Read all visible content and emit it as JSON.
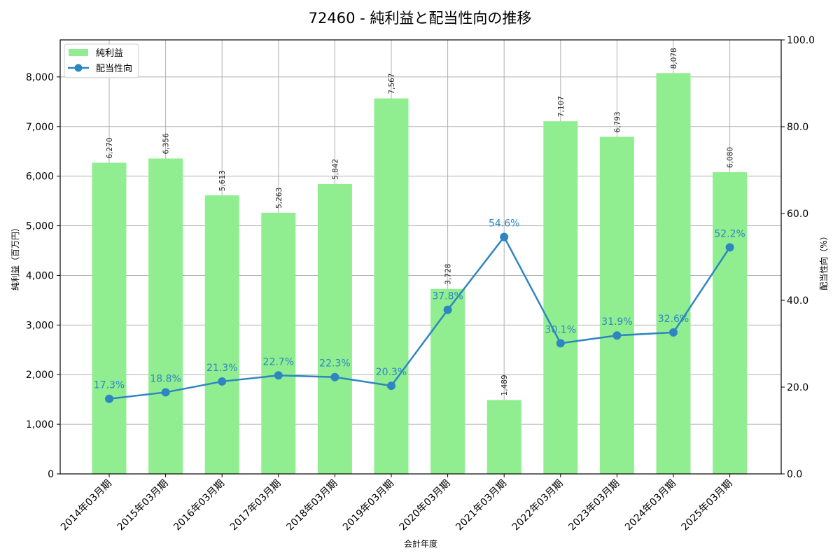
{
  "chart_data": {
    "type": "bar+line",
    "title": "72460 - 純利益と配当性向の推移",
    "xlabel": "会計年度",
    "ylabel": "純利益（百万円）",
    "y2label": "配当性向（%）",
    "categories": [
      "2014年03月期",
      "2015年03月期",
      "2016年03月期",
      "2017年03月期",
      "2018年03月期",
      "2019年03月期",
      "2020年03月期",
      "2021年03月期",
      "2022年03月期",
      "2023年03月期",
      "2024年03月期",
      "2025年03月期"
    ],
    "series": [
      {
        "name": "純利益",
        "type": "bar",
        "axis": "left",
        "color": "#90ee90",
        "values": [
          6270,
          6356,
          5613,
          5263,
          5842,
          7567,
          3728,
          1489,
          7107,
          6793,
          8078,
          6080
        ],
        "labels": [
          "6,270",
          "6,356",
          "5,613",
          "5,263",
          "5,842",
          "7,567",
          "3,728",
          "1,489",
          "7,107",
          "6,793",
          "8,078",
          "6,080"
        ]
      },
      {
        "name": "配当性向",
        "type": "line",
        "axis": "right",
        "color": "#2e86c1",
        "marker": "circle",
        "values": [
          17.3,
          18.8,
          21.3,
          22.7,
          22.3,
          20.3,
          37.8,
          54.6,
          30.1,
          31.9,
          32.6,
          52.2
        ],
        "labels": [
          "17.3%",
          "18.8%",
          "21.3%",
          "22.7%",
          "22.3%",
          "20.3%",
          "37.8%",
          "54.6%",
          "30.1%",
          "31.9%",
          "32.6%",
          "52.2%"
        ]
      }
    ],
    "ylim": [
      0,
      8746
    ],
    "y2lim": [
      0,
      100
    ],
    "yticks": [
      0,
      1000,
      2000,
      3000,
      4000,
      5000,
      6000,
      7000,
      8000
    ],
    "yticklabels": [
      "0",
      "1,000",
      "2,000",
      "3,000",
      "4,000",
      "5,000",
      "6,000",
      "7,000",
      "8,000"
    ],
    "y2ticks": [
      0,
      20,
      40,
      60,
      80,
      100
    ],
    "y2ticklabels": [
      "0.0",
      "20.0",
      "40.0",
      "60.0",
      "80.0",
      "100.0"
    ],
    "grid": true,
    "legend_position": "upper left"
  },
  "legend": {
    "bar_label": "純利益",
    "line_label": "配当性向"
  }
}
